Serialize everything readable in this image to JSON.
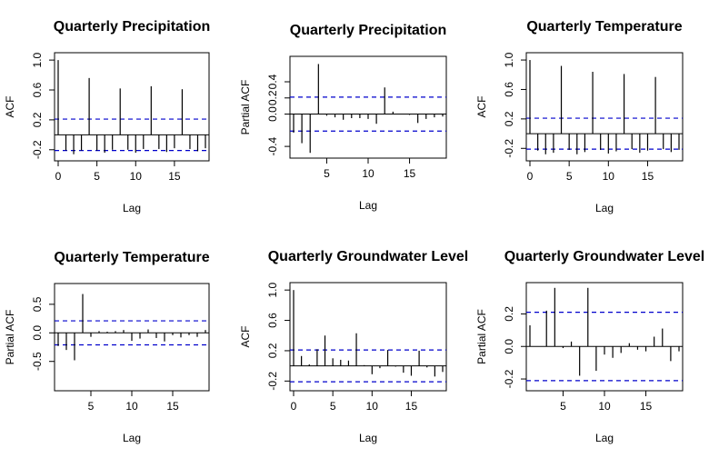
{
  "colors": {
    "background": "#ffffff",
    "spike": "#000000",
    "confidence": "#0000cc",
    "frame": "#000000"
  },
  "chart_data": [
    {
      "type": "bar",
      "kind": "ACF",
      "title": "Quarterly Precipitation",
      "xlabel": "Lag",
      "ylabel": "ACF",
      "xlim": [
        0,
        19
      ],
      "ylim": [
        -0.3,
        1.05
      ],
      "xticks": [
        0,
        5,
        10,
        15
      ],
      "yticks": [
        -0.2,
        0.2,
        0.6,
        1.0
      ],
      "xticklabels": [
        "0",
        "5",
        "10",
        "15"
      ],
      "yticklabels": [
        "-0.2",
        "0.2",
        "0.6",
        "1.0"
      ],
      "ci": 0.21,
      "lags": [
        0,
        1,
        2,
        3,
        4,
        5,
        6,
        7,
        8,
        9,
        10,
        11,
        12,
        13,
        14,
        15,
        16,
        17,
        18,
        19
      ],
      "values": [
        1.0,
        -0.21,
        -0.26,
        -0.21,
        0.76,
        -0.21,
        -0.24,
        -0.2,
        0.62,
        -0.2,
        -0.24,
        -0.19,
        0.65,
        -0.19,
        -0.23,
        -0.18,
        0.61,
        -0.19,
        -0.22,
        -0.18
      ]
    },
    {
      "type": "bar",
      "kind": "PACF",
      "title": "Quarterly Precipitation",
      "xlabel": "Lag",
      "ylabel": "Partial ACF",
      "xlim": [
        1,
        19
      ],
      "ylim": [
        -0.5,
        0.67
      ],
      "xticks": [
        5,
        10,
        15
      ],
      "yticks": [
        -0.4,
        0.0,
        0.2,
        0.4
      ],
      "xticklabels": [
        "5",
        "10",
        "15"
      ],
      "yticklabels": [
        "-0.4",
        "0.0",
        "0.2",
        "0.4"
      ],
      "ci": 0.21,
      "lags": [
        1,
        2,
        3,
        4,
        5,
        6,
        7,
        8,
        9,
        10,
        11,
        12,
        13,
        14,
        15,
        16,
        17,
        18,
        19
      ],
      "values": [
        -0.23,
        -0.36,
        -0.48,
        0.62,
        -0.02,
        -0.04,
        -0.07,
        -0.05,
        -0.05,
        -0.06,
        -0.12,
        0.33,
        0.03,
        0.0,
        -0.01,
        -0.11,
        -0.06,
        -0.04,
        -0.03
      ]
    },
    {
      "type": "bar",
      "kind": "ACF",
      "title": "Quarterly Temperature",
      "xlabel": "Lag",
      "ylabel": "ACF",
      "xlim": [
        0,
        19
      ],
      "ylim": [
        -0.32,
        1.05
      ],
      "xticks": [
        0,
        5,
        10,
        15
      ],
      "yticks": [
        -0.2,
        0.2,
        0.6,
        1.0
      ],
      "xticklabels": [
        "0",
        "5",
        "10",
        "15"
      ],
      "yticklabels": [
        "-0.2",
        "0.2",
        "0.6",
        "1.0"
      ],
      "ci": 0.21,
      "lags": [
        0,
        1,
        2,
        3,
        4,
        5,
        6,
        7,
        8,
        9,
        10,
        11,
        12,
        13,
        14,
        15,
        16,
        17,
        18,
        19
      ],
      "values": [
        1.0,
        -0.23,
        -0.28,
        -0.26,
        0.92,
        -0.22,
        -0.28,
        -0.25,
        0.84,
        -0.22,
        -0.27,
        -0.24,
        0.81,
        -0.21,
        -0.26,
        -0.23,
        0.77,
        -0.21,
        -0.25,
        -0.22
      ]
    },
    {
      "type": "bar",
      "kind": "PACF",
      "title": "Quarterly Temperature",
      "xlabel": "Lag",
      "ylabel": "Partial ACF",
      "xlim": [
        1,
        19
      ],
      "ylim": [
        -0.95,
        0.8
      ],
      "xticks": [
        5,
        10,
        15
      ],
      "yticks": [
        -0.5,
        0.0,
        0.5
      ],
      "xticklabels": [
        "5",
        "10",
        "15"
      ],
      "yticklabels": [
        "-0.5",
        "0.0",
        "0.5"
      ],
      "ci": 0.21,
      "lags": [
        1,
        2,
        3,
        4,
        5,
        6,
        7,
        8,
        9,
        10,
        11,
        12,
        13,
        14,
        15,
        16,
        17,
        18,
        19
      ],
      "values": [
        -0.23,
        -0.3,
        -0.48,
        0.68,
        -0.07,
        0.03,
        0.02,
        0.03,
        0.05,
        -0.14,
        -0.1,
        0.06,
        -0.09,
        -0.15,
        -0.04,
        -0.08,
        -0.04,
        -0.07,
        0.05
      ]
    },
    {
      "type": "bar",
      "kind": "ACF",
      "title": "Quarterly Groundwater Level",
      "xlabel": "Lag",
      "ylabel": "ACF",
      "xlim": [
        0,
        19
      ],
      "ylim": [
        -0.28,
        1.05
      ],
      "xticks": [
        0,
        5,
        10,
        15
      ],
      "yticks": [
        -0.2,
        0.2,
        0.6,
        1.0
      ],
      "xticklabels": [
        "0",
        "5",
        "10",
        "15"
      ],
      "yticklabels": [
        "-0.2",
        "0.2",
        "0.6",
        "1.0"
      ],
      "ci": 0.21,
      "lags": [
        0,
        1,
        2,
        3,
        4,
        5,
        6,
        7,
        8,
        9,
        10,
        11,
        12,
        13,
        14,
        15,
        16,
        17,
        18,
        19
      ],
      "values": [
        1.0,
        0.13,
        0.02,
        0.22,
        0.4,
        0.1,
        0.08,
        0.07,
        0.43,
        0.01,
        -0.11,
        -0.03,
        0.21,
        -0.01,
        -0.09,
        -0.13,
        0.2,
        -0.02,
        -0.14,
        -0.08
      ]
    },
    {
      "type": "bar",
      "kind": "PACF",
      "title": "Quarterly Groundwater Level",
      "xlabel": "Lag",
      "ylabel": "Partial ACF",
      "xlim": [
        1,
        19
      ],
      "ylim": [
        -0.25,
        0.37
      ],
      "xticks": [
        5,
        10,
        15
      ],
      "yticks": [
        -0.2,
        0.0,
        0.2
      ],
      "xticklabels": [
        "5",
        "10",
        "15"
      ],
      "yticklabels": [
        "-0.2",
        "0.0",
        "0.2"
      ],
      "ci": 0.21,
      "lags": [
        1,
        2,
        3,
        4,
        5,
        6,
        7,
        8,
        9,
        10,
        11,
        12,
        13,
        14,
        15,
        16,
        17,
        18,
        19
      ],
      "values": [
        0.13,
        0.0,
        0.22,
        0.36,
        -0.01,
        0.03,
        -0.18,
        0.36,
        -0.15,
        -0.05,
        -0.07,
        -0.04,
        0.02,
        -0.02,
        -0.03,
        0.06,
        0.11,
        -0.09,
        -0.03
      ]
    }
  ]
}
